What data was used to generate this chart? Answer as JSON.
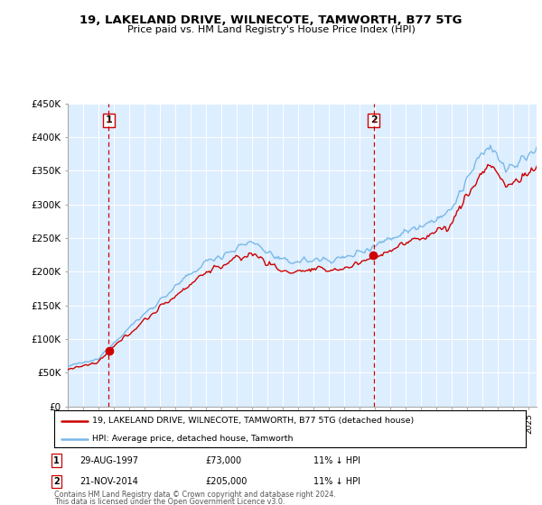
{
  "title": "19, LAKELAND DRIVE, WILNECOTE, TAMWORTH, B77 5TG",
  "subtitle": "Price paid vs. HM Land Registry's House Price Index (HPI)",
  "ylim": [
    0,
    450000
  ],
  "xlim_start": 1995.0,
  "xlim_end": 2025.5,
  "transaction1": {
    "date_num": 1997.66,
    "price": 73000,
    "label": "1",
    "date_str": "29-AUG-1997",
    "pct": "11% ↓ HPI"
  },
  "transaction2": {
    "date_num": 2014.9,
    "price": 205000,
    "label": "2",
    "date_str": "21-NOV-2014",
    "pct": "11% ↓ HPI"
  },
  "legend_line1": "19, LAKELAND DRIVE, WILNECOTE, TAMWORTH, B77 5TG (detached house)",
  "legend_line2": "HPI: Average price, detached house, Tamworth",
  "footer1": "Contains HM Land Registry data © Crown copyright and database right 2024.",
  "footer2": "This data is licensed under the Open Government Licence v3.0.",
  "hpi_color": "#7ab8e8",
  "price_color": "#cc0000",
  "dashed_color": "#cc0000",
  "bg_plot_color": "#ddeeff",
  "background_color": "#ffffff",
  "grid_color": "#ffffff"
}
